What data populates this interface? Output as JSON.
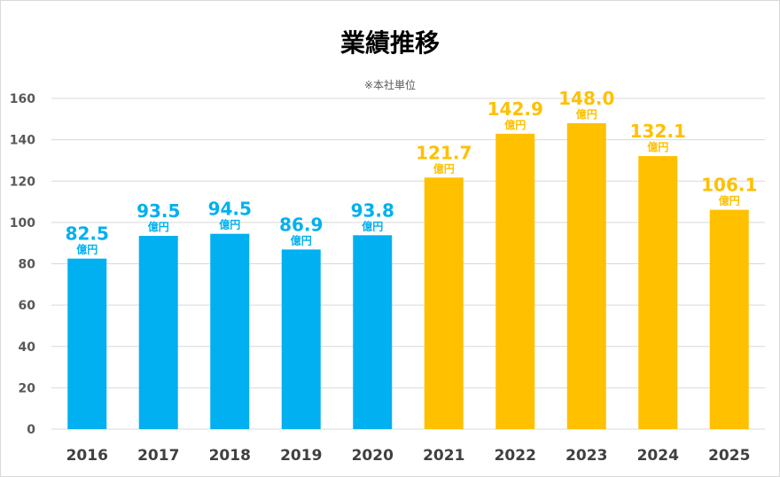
{
  "chart_data": {
    "type": "bar",
    "title": "業績推移",
    "subtitle": "※本社単位",
    "xlabel": "",
    "ylabel": "",
    "ylim": [
      0,
      160
    ],
    "yticks": [
      0,
      20,
      40,
      60,
      80,
      100,
      120,
      140,
      160
    ],
    "grid": true,
    "categories": [
      "2016",
      "2017",
      "2018",
      "2019",
      "2020",
      "2021",
      "2022",
      "2023",
      "2024",
      "2025"
    ],
    "values": [
      82.5,
      93.5,
      94.5,
      86.9,
      93.8,
      121.7,
      142.9,
      148.0,
      132.1,
      106.1
    ],
    "value_labels": [
      "82.5",
      "93.5",
      "94.5",
      "86.9",
      "93.8",
      "121.7",
      "142.9",
      "148.0",
      "132.1",
      "106.1"
    ],
    "unit_label": "億円",
    "colors": {
      "blue": "#00b0f0",
      "orange": "#ffc000",
      "grid": "#d9d9d9"
    },
    "bar_color_groups": [
      "blue",
      "blue",
      "blue",
      "blue",
      "blue",
      "orange",
      "orange",
      "orange",
      "orange",
      "orange"
    ]
  }
}
